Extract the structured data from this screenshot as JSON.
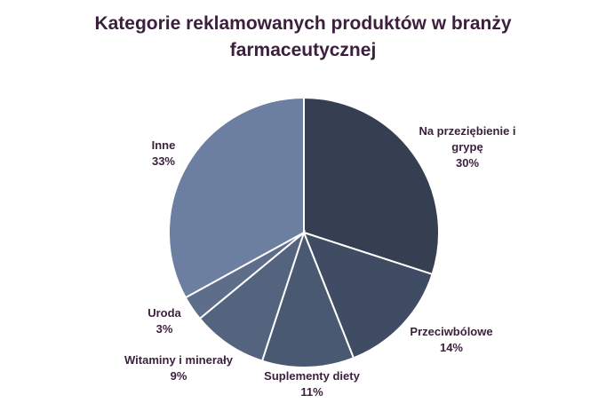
{
  "chart_data": {
    "type": "pie",
    "title_line1": "Kategorie reklamowanych produktów w branży",
    "title_line2": "farmaceutycznej",
    "slices": [
      {
        "label": "Na przeziębienie i grypę",
        "label_line1": "Na przeziębienie i",
        "label_line2": "grypę",
        "value": 30,
        "value_label": "30%",
        "color": "#363f51"
      },
      {
        "label": "Przeciwbólowe",
        "value": 14,
        "value_label": "14%",
        "color": "#404c63"
      },
      {
        "label": "Suplementy diety",
        "value": 11,
        "value_label": "11%",
        "color": "#4a5972"
      },
      {
        "label": "Witaminy i minerały",
        "value": 9,
        "value_label": "9%",
        "color": "#55647e"
      },
      {
        "label": "Uroda",
        "value": 3,
        "value_label": "3%",
        "color": "#5e6e8a"
      },
      {
        "label": "Inne",
        "value": 33,
        "value_label": "33%",
        "color": "#6c7fa0"
      }
    ],
    "start_angle": "12 o'clock",
    "direction": "clockwise",
    "legend": "none"
  }
}
